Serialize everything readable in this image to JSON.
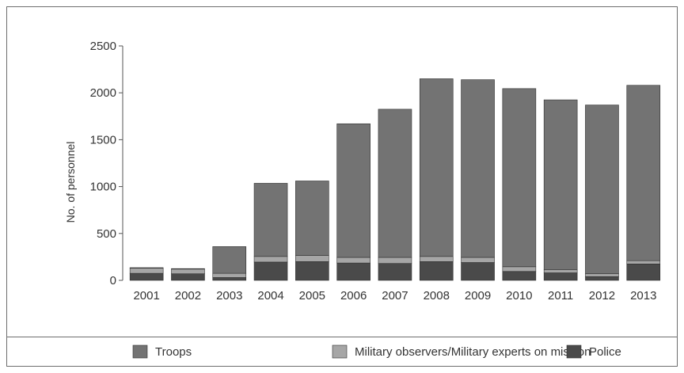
{
  "chart_data": {
    "type": "bar",
    "stacked": true,
    "categories": [
      "2001",
      "2002",
      "2003",
      "2004",
      "2005",
      "2006",
      "2007",
      "2008",
      "2009",
      "2010",
      "2011",
      "2012",
      "2013"
    ],
    "series": [
      {
        "name": "Police",
        "color": "#4a4a4a",
        "values": [
          75,
          70,
          30,
          195,
          200,
          185,
          180,
          200,
          190,
          95,
          80,
          40,
          175
        ]
      },
      {
        "name": "Military observers/Military experts on mission",
        "color": "#a6a6a6",
        "values": [
          55,
          50,
          45,
          60,
          65,
          60,
          65,
          55,
          55,
          50,
          35,
          30,
          35
        ]
      },
      {
        "name": "Troops",
        "color": "#737373",
        "values": [
          5,
          5,
          285,
          780,
          795,
          1425,
          1580,
          1895,
          1895,
          1900,
          1810,
          1800,
          1870
        ]
      }
    ],
    "ylabel": "No. of personnel",
    "ylim": [
      0,
      2500
    ],
    "yticks": [
      "0",
      "500",
      "1000",
      "1500",
      "2000",
      "2500"
    ],
    "legend": {
      "placement": "bottom",
      "items": [
        "Troops",
        "Military observers/Military experts on mission",
        "Police"
      ]
    },
    "grid": false
  }
}
